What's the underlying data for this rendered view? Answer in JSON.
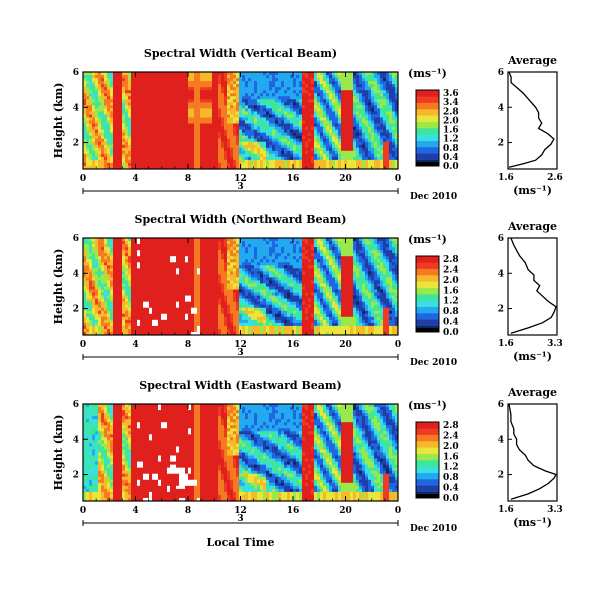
{
  "chart_data": [
    {
      "type": "heatmap",
      "title": "Spectral Width (Vertical Beam)",
      "ylabel": "Height (km)",
      "xlabel": "",
      "xlim": [
        0,
        24
      ],
      "ylim": [
        0.5,
        6
      ],
      "x_ticks": [
        "0",
        "4",
        "8",
        "12",
        "16",
        "20",
        "0"
      ],
      "y_ticks": [
        "6",
        "4",
        "2"
      ],
      "date_label": "3",
      "date_right": "Dec 2010",
      "unit_label": "(ms⁻¹)",
      "colorbar": {
        "min": 0.0,
        "max": 3.6,
        "labels": [
          "3.6",
          "3.4",
          "2.8",
          "2.0",
          "1.6",
          "1.2",
          "0.8",
          "0.4",
          "0.0"
        ]
      },
      "average": {
        "title": "Average",
        "xlabel": "(ms⁻¹)",
        "x_ticks": [
          "1.6",
          "2.6"
        ],
        "y_ticks": [
          "6",
          "4",
          "2"
        ],
        "xlim": [
          1.6,
          3.2
        ],
        "ylim": [
          0.5,
          6
        ],
        "profile": [
          [
            0.6,
            1.6
          ],
          [
            0.8,
            2.1
          ],
          [
            1.0,
            2.5
          ],
          [
            1.3,
            2.7
          ],
          [
            1.6,
            2.8
          ],
          [
            1.9,
            3.0
          ],
          [
            2.2,
            3.1
          ],
          [
            2.5,
            2.9
          ],
          [
            2.8,
            2.6
          ],
          [
            3.1,
            2.7
          ],
          [
            3.4,
            2.6
          ],
          [
            3.7,
            2.6
          ],
          [
            4.0,
            2.5
          ],
          [
            4.4,
            2.3
          ],
          [
            4.8,
            2.1
          ],
          [
            5.1,
            1.9
          ],
          [
            5.4,
            1.7
          ],
          [
            5.7,
            1.7
          ],
          [
            6.0,
            1.6
          ]
        ]
      }
    },
    {
      "type": "heatmap",
      "title": "Spectral Width (Northward Beam)",
      "ylabel": "Height (km)",
      "xlabel": "",
      "xlim": [
        0,
        24
      ],
      "ylim": [
        0.5,
        6
      ],
      "x_ticks": [
        "0",
        "4",
        "8",
        "12",
        "16",
        "20",
        "0"
      ],
      "y_ticks": [
        "6",
        "4",
        "2"
      ],
      "date_label": "3",
      "date_right": "Dec 2010",
      "unit_label": "(ms⁻¹)",
      "colorbar": {
        "min": 0.0,
        "max": 3.6,
        "labels": [
          "2.8",
          "2.4",
          "2.0",
          "1.6",
          "1.2",
          "0.8",
          "0.4",
          "0.0"
        ]
      },
      "average": {
        "title": "Average",
        "xlabel": "(ms⁻¹)",
        "x_ticks": [
          "1.6",
          "3.3"
        ],
        "y_ticks": [
          "6",
          "4",
          "2"
        ],
        "xlim": [
          1.6,
          3.3
        ],
        "ylim": [
          0.5,
          6
        ],
        "profile": [
          [
            0.6,
            1.7
          ],
          [
            0.9,
            2.3
          ],
          [
            1.2,
            2.8
          ],
          [
            1.5,
            3.1
          ],
          [
            1.8,
            3.2
          ],
          [
            2.1,
            3.3
          ],
          [
            2.4,
            3.0
          ],
          [
            2.7,
            2.8
          ],
          [
            3.0,
            2.6
          ],
          [
            3.3,
            2.7
          ],
          [
            3.6,
            2.5
          ],
          [
            3.9,
            2.5
          ],
          [
            4.2,
            2.3
          ],
          [
            4.6,
            2.2
          ],
          [
            5.0,
            2.0
          ],
          [
            5.3,
            1.9
          ],
          [
            5.6,
            1.8
          ],
          [
            6.0,
            1.7
          ]
        ]
      }
    },
    {
      "type": "heatmap",
      "title": "Spectral Width (Eastward Beam)",
      "ylabel": "Height (km)",
      "xlabel": "Local Time",
      "xlim": [
        0,
        24
      ],
      "ylim": [
        0.5,
        6
      ],
      "x_ticks": [
        "0",
        "4",
        "8",
        "12",
        "16",
        "20",
        "0"
      ],
      "y_ticks": [
        "6",
        "4",
        "2"
      ],
      "date_label": "3",
      "date_right": "Dec 2010",
      "unit_label": "(ms⁻¹)",
      "colorbar": {
        "min": 0.0,
        "max": 3.6,
        "labels": [
          "2.8",
          "2.4",
          "2.0",
          "1.6",
          "1.2",
          "0.8",
          "0.4",
          "0.0"
        ]
      },
      "average": {
        "title": "Average",
        "xlabel": "(ms⁻¹)",
        "x_ticks": [
          "1.6",
          "3.3"
        ],
        "y_ticks": [
          "6",
          "4",
          "2"
        ],
        "xlim": [
          1.6,
          3.3
        ],
        "ylim": [
          0.5,
          6
        ],
        "profile": [
          [
            0.6,
            1.7
          ],
          [
            0.9,
            2.3
          ],
          [
            1.2,
            2.7
          ],
          [
            1.5,
            3.0
          ],
          [
            1.8,
            3.2
          ],
          [
            2.0,
            3.3
          ],
          [
            2.2,
            2.9
          ],
          [
            2.5,
            2.5
          ],
          [
            2.8,
            2.3
          ],
          [
            3.1,
            2.2
          ],
          [
            3.4,
            2.0
          ],
          [
            3.7,
            1.9
          ],
          [
            4.0,
            1.9
          ],
          [
            4.3,
            1.8
          ],
          [
            4.6,
            1.8
          ],
          [
            5.0,
            1.7
          ],
          [
            5.4,
            1.7
          ],
          [
            6.0,
            1.6
          ]
        ]
      }
    }
  ],
  "colors": {
    "scale": [
      "#0a2a66",
      "#1f3ea8",
      "#1f66e0",
      "#23a9f0",
      "#38e0e0",
      "#3fe69a",
      "#9be84a",
      "#e8e63a",
      "#f5b92a",
      "#f57a22",
      "#ef3b22",
      "#e0201c"
    ],
    "missing": "#ffffff"
  }
}
